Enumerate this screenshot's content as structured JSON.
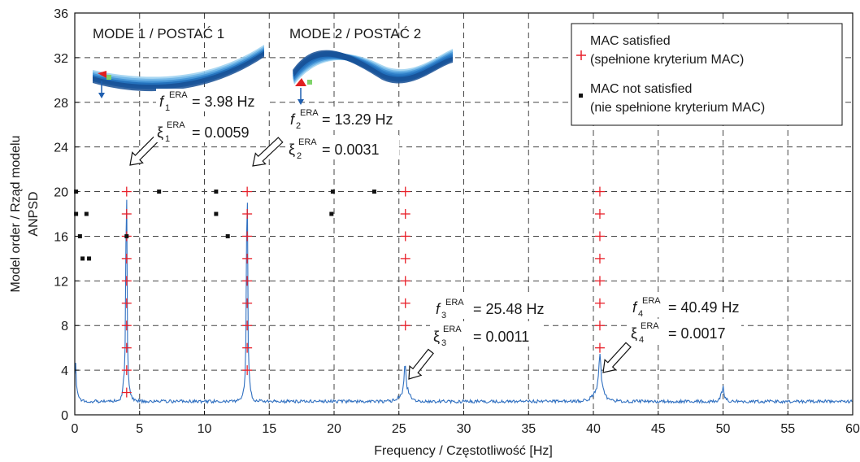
{
  "chart_data": {
    "type": "scatter",
    "xlabel": "Frequency / Częstotliwość [Hz]",
    "ylabel": "Model order / Rząd modelu",
    "ylabel2": "ANPSD",
    "xlim": [
      0,
      60
    ],
    "ylim": [
      0,
      36
    ],
    "xticks": [
      0,
      5,
      10,
      15,
      20,
      25,
      30,
      35,
      40,
      45,
      50,
      55,
      60
    ],
    "yticks": [
      0,
      4,
      8,
      12,
      16,
      20,
      24,
      28,
      32,
      36
    ],
    "grid": true,
    "legend_position": "top-right",
    "legend": [
      {
        "line1": "MAC satisfied",
        "line2": "(spełnione kryterium MAC)",
        "color": "#e8202a",
        "marker": "plus"
      },
      {
        "line1": "MAC not satisfied",
        "line2": "(nie spełnione kryterium MAC)",
        "color": "#111111",
        "marker": "square"
      }
    ],
    "series": [
      {
        "name": "MAC satisfied",
        "color": "#e8202a",
        "points": [
          [
            4.0,
            2
          ],
          [
            4.0,
            4
          ],
          [
            4.0,
            6
          ],
          [
            4.0,
            8
          ],
          [
            4.0,
            10
          ],
          [
            4.0,
            12
          ],
          [
            4.0,
            14
          ],
          [
            4.0,
            16
          ],
          [
            4.0,
            18
          ],
          [
            4.0,
            20
          ],
          [
            13.3,
            4
          ],
          [
            13.3,
            6
          ],
          [
            13.3,
            8
          ],
          [
            13.3,
            10
          ],
          [
            13.3,
            12
          ],
          [
            13.3,
            14
          ],
          [
            13.3,
            16
          ],
          [
            13.3,
            18
          ],
          [
            13.3,
            20
          ],
          [
            25.5,
            8
          ],
          [
            25.5,
            10
          ],
          [
            25.5,
            12
          ],
          [
            25.5,
            14
          ],
          [
            25.5,
            16
          ],
          [
            25.5,
            18
          ],
          [
            25.5,
            20
          ],
          [
            40.5,
            6
          ],
          [
            40.5,
            8
          ],
          [
            40.5,
            10
          ],
          [
            40.5,
            12
          ],
          [
            40.5,
            14
          ],
          [
            40.5,
            16
          ],
          [
            40.5,
            18
          ],
          [
            40.5,
            20
          ]
        ]
      },
      {
        "name": "MAC not satisfied",
        "color": "#111111",
        "points": [
          [
            0.1,
            20
          ],
          [
            0.1,
            18
          ],
          [
            0.9,
            18
          ],
          [
            0.4,
            16
          ],
          [
            0.6,
            14
          ],
          [
            1.1,
            14
          ],
          [
            4.0,
            16
          ],
          [
            6.5,
            20
          ],
          [
            10.9,
            20
          ],
          [
            10.9,
            18
          ],
          [
            11.8,
            16
          ],
          [
            19.9,
            20
          ],
          [
            19.8,
            18
          ],
          [
            23.1,
            20
          ]
        ]
      }
    ],
    "anpsd": {
      "color": "#2f6fc0",
      "baseline": 1.2,
      "peaks": [
        {
          "f": 0.05,
          "h": 3.0,
          "w": 0.06
        },
        {
          "f": 3.98,
          "h": 22.3,
          "w": 0.045
        },
        {
          "f": 13.29,
          "h": 22.3,
          "w": 0.045
        },
        {
          "f": 25.48,
          "h": 2.9,
          "w": 0.1
        },
        {
          "f": 40.49,
          "h": 3.6,
          "w": 0.12
        },
        {
          "f": 50.0,
          "h": 0.8,
          "w": 0.05
        }
      ]
    },
    "modes": [
      {
        "title": "MODE 1 / POSTAĆ 1",
        "f_label": "f",
        "f_sub": "1",
        "f_sup": "ERA",
        "f_value": "= 3.98 Hz",
        "xi_label": "ξ",
        "xi_sub": "1",
        "xi_sup": "ERA",
        "xi_value": "= 0.0059"
      },
      {
        "title": "MODE 2 / POSTAĆ 2",
        "f_label": "f",
        "f_sub": "2",
        "f_sup": "ERA",
        "f_value": "= 13.29 Hz",
        "xi_label": "ξ",
        "xi_sub": "2",
        "xi_sup": "ERA",
        "xi_value": "= 0.0031"
      },
      {
        "title": "",
        "f_label": "f",
        "f_sub": "3",
        "f_sup": "ERA",
        "f_value": "= 25.48 Hz",
        "xi_label": "ξ",
        "xi_sub": "3",
        "xi_sup": "ERA",
        "xi_value": "= 0.0011"
      },
      {
        "title": "",
        "f_label": "f",
        "f_sub": "4",
        "f_sup": "ERA",
        "f_value": "= 40.49 Hz",
        "xi_label": "ξ",
        "xi_sub": "4",
        "xi_sup": "ERA",
        "xi_value": "= 0.0017"
      }
    ]
  }
}
